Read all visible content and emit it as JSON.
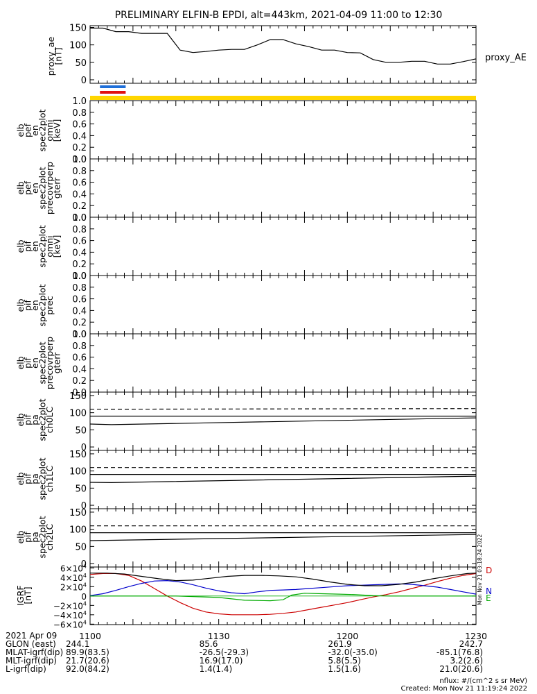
{
  "title": "PRELIMINARY ELFIN-B EPDI, alt=443km, 2021-04-09 11:00 to 12:30",
  "chart_data": [
    {
      "id": "ae",
      "type": "line",
      "ylabel_lines": [
        "proxy_ae",
        "[nT]"
      ],
      "yticks": [
        "150",
        "100",
        "50",
        "0"
      ],
      "ylim": [
        -10,
        155
      ],
      "side_label": "proxy_AE",
      "x_minutes": [
        0,
        3,
        6,
        9,
        12,
        15,
        18,
        21,
        24,
        27,
        30,
        33,
        36,
        39,
        42,
        45,
        48,
        51,
        54,
        57,
        60,
        63,
        66,
        69,
        72,
        75,
        78,
        81,
        84,
        87,
        90
      ],
      "values": [
        148,
        148,
        138,
        138,
        133,
        133,
        133,
        85,
        78,
        81,
        85,
        87,
        87,
        100,
        115,
        115,
        103,
        95,
        85,
        85,
        78,
        77,
        58,
        50,
        50,
        53,
        53,
        45,
        45,
        52,
        60
      ]
    },
    {
      "id": "e-pef-omni",
      "type": "spectrogram",
      "ylabel_lines": [
        "elb",
        "pef",
        "en",
        "spec2plot",
        "omni",
        "[keV]"
      ],
      "yticks": [
        "1.0",
        "0.8",
        "0.6",
        "0.4",
        "0.2",
        "0.0"
      ],
      "ylim": [
        0,
        1
      ]
    },
    {
      "id": "e-pef-precovrperp",
      "type": "spectrogram",
      "ylabel_lines": [
        "elb",
        "pef",
        "en",
        "spec2plot",
        "precovrperp",
        "gterr"
      ],
      "yticks": [
        "1.0",
        "0.8",
        "0.6",
        "0.4",
        "0.2",
        "0.0"
      ],
      "ylim": [
        0,
        1
      ]
    },
    {
      "id": "e-pif-omni",
      "type": "spectrogram",
      "ylabel_lines": [
        "elb",
        "pif",
        "en",
        "spec2plot",
        "omni",
        "[keV]"
      ],
      "yticks": [
        "1.0",
        "0.8",
        "0.6",
        "0.4",
        "0.2",
        "0.0"
      ],
      "ylim": [
        0,
        1
      ]
    },
    {
      "id": "e-pif-prec",
      "type": "spectrogram",
      "ylabel_lines": [
        "elb",
        "pif",
        "en",
        "spec2plot",
        "prec"
      ],
      "yticks": [
        "1.0",
        "0.8",
        "0.6",
        "0.4",
        "0.2",
        "0.0"
      ],
      "ylim": [
        0,
        1
      ]
    },
    {
      "id": "e-pif-precovrperp",
      "type": "spectrogram",
      "ylabel_lines": [
        "elb",
        "pif",
        "en",
        "spec2plot",
        "precovrperp",
        "gterr"
      ],
      "yticks": [
        "1.0",
        "0.8",
        "0.6",
        "0.4",
        "0.2",
        "0.0"
      ],
      "ylim": [
        0,
        1
      ]
    },
    {
      "id": "pa-ch0",
      "type": "line",
      "ylabel_lines": [
        "elb",
        "pif",
        "pa",
        "spec2plot",
        "ch0LC"
      ],
      "yticks": [
        "150",
        "100",
        "50",
        "0"
      ],
      "ylim": [
        -10,
        160
      ],
      "series": [
        {
          "style": "dashed",
          "x_minutes": [
            0,
            90
          ],
          "values": [
            110,
            112
          ]
        },
        {
          "style": "solid",
          "x_minutes": [
            0,
            90
          ],
          "values": [
            90,
            90
          ]
        },
        {
          "style": "solid",
          "x_minutes": [
            0,
            5,
            90
          ],
          "values": [
            67,
            65,
            85
          ]
        }
      ]
    },
    {
      "id": "pa-ch1",
      "type": "line",
      "ylabel_lines": [
        "elb",
        "pif",
        "pa",
        "spec2plot",
        "ch1LC"
      ],
      "yticks": [
        "150",
        "100",
        "50",
        "0"
      ],
      "ylim": [
        -10,
        160
      ],
      "series": [
        {
          "style": "dashed",
          "x_minutes": [
            0,
            90
          ],
          "values": [
            110,
            110
          ]
        },
        {
          "style": "solid",
          "x_minutes": [
            0,
            90
          ],
          "values": [
            90,
            90
          ]
        },
        {
          "style": "solid",
          "x_minutes": [
            0,
            5,
            90
          ],
          "values": [
            67,
            66,
            85
          ]
        }
      ]
    },
    {
      "id": "pa-ch2",
      "type": "line",
      "ylabel_lines": [
        "elb",
        "pif",
        "pa",
        "spec2plot",
        "ch2LC"
      ],
      "yticks": [
        "150",
        "100",
        "50",
        "0"
      ],
      "ylim": [
        -10,
        160
      ],
      "series": [
        {
          "style": "dashed",
          "x_minutes": [
            0,
            90
          ],
          "values": [
            110,
            110
          ]
        },
        {
          "style": "solid",
          "x_minutes": [
            0,
            90
          ],
          "values": [
            90,
            90
          ]
        },
        {
          "style": "solid",
          "x_minutes": [
            0,
            90
          ],
          "values": [
            67,
            85
          ]
        }
      ]
    },
    {
      "id": "igrf",
      "type": "line",
      "ylabel_lines": [
        "IGRF",
        "[nT]"
      ],
      "ylim": [
        -61000,
        62000
      ],
      "yticks": [
        {
          "v": 60000,
          "m": "6×10",
          "e": "4"
        },
        {
          "v": 40000,
          "m": "4×10",
          "e": "4"
        },
        {
          "v": 20000,
          "m": "2×10",
          "e": "4"
        },
        {
          "v": 0,
          "m": "0",
          "e": ""
        },
        {
          "v": -20000,
          "m": "−2×10",
          "e": "4"
        },
        {
          "v": -40000,
          "m": "−4×10",
          "e": "4"
        },
        {
          "v": -60000,
          "m": "−6×10",
          "e": "4"
        }
      ],
      "right_note": "Mon Nov 21 03:18:24 2022",
      "series": [
        {
          "name": "D",
          "color": "#cc0000",
          "x_minutes": [
            0,
            3,
            6,
            9,
            12,
            15,
            18,
            21,
            24,
            27,
            30,
            33,
            36,
            39,
            42,
            45,
            48,
            51,
            54,
            57,
            60,
            63,
            66,
            69,
            72,
            75,
            78,
            81,
            84,
            87,
            90
          ],
          "values": [
            46000,
            48000,
            48000,
            44000,
            32000,
            16000,
            0,
            -14000,
            -26000,
            -34000,
            -38000,
            -40000,
            -40000,
            -40000,
            -39000,
            -37000,
            -34000,
            -29000,
            -24000,
            -19000,
            -14000,
            -8000,
            -2000,
            3000,
            9000,
            16000,
            23000,
            31000,
            38000,
            44000,
            48000
          ]
        },
        {
          "name": "N",
          "color": "#0000cc",
          "x_minutes": [
            0,
            3,
            6,
            9,
            12,
            15,
            18,
            21,
            24,
            27,
            30,
            33,
            36,
            39,
            42,
            45,
            48,
            51,
            54,
            57,
            60,
            63,
            66,
            69,
            72,
            75,
            78,
            81,
            84,
            87,
            90
          ],
          "values": [
            1000,
            5000,
            12000,
            20000,
            27000,
            32000,
            33000,
            30000,
            24000,
            17000,
            11000,
            7000,
            5000,
            9000,
            12000,
            13000,
            14000,
            16000,
            18000,
            20000,
            22000,
            23000,
            24000,
            25000,
            26000,
            25000,
            22000,
            19000,
            14000,
            9000,
            4000
          ]
        },
        {
          "name": "E",
          "color": "#00aa00",
          "x_minutes": [
            0,
            10,
            20,
            30,
            36,
            42,
            45,
            47,
            50,
            54,
            58,
            62,
            66,
            70,
            75,
            80,
            85,
            90
          ],
          "values": [
            0,
            0,
            0,
            -3000,
            -9000,
            -10000,
            -8000,
            2000,
            6000,
            5000,
            4000,
            3000,
            1000,
            0,
            0,
            0,
            0,
            0
          ]
        },
        {
          "name": "",
          "color": "#000000",
          "x_minutes": [
            0,
            4,
            8,
            12,
            16,
            20,
            24,
            28,
            32,
            36,
            40,
            44,
            48,
            52,
            56,
            60,
            64,
            68,
            72,
            76,
            80,
            84,
            88,
            90
          ],
          "values": [
            49000,
            49000,
            47000,
            42000,
            37000,
            33000,
            34000,
            38000,
            42000,
            44000,
            44000,
            43000,
            41000,
            36000,
            30000,
            25000,
            22000,
            22000,
            25000,
            30000,
            37000,
            43000,
            48000,
            49000
          ]
        }
      ]
    }
  ],
  "axis": {
    "x_min": 0,
    "x_max": 90,
    "ticks": [
      {
        "x_minutes": 0,
        "label": "1100"
      },
      {
        "x_minutes": 30,
        "label": "1130"
      },
      {
        "x_minutes": 60,
        "label": "1200"
      },
      {
        "x_minutes": 90,
        "label": "1230"
      }
    ]
  },
  "footer": {
    "date": "2021 Apr 09",
    "rows": [
      {
        "label": "GLON (east)",
        "values": [
          "244.1",
          "85.6",
          "261.9",
          "242.7"
        ]
      },
      {
        "label": "MLAT-igrf(dip)",
        "values": [
          "89.9(83.5)",
          "-26.5(-29.3)",
          "-32.0(-35.0)",
          "-85.1(76.8)"
        ]
      },
      {
        "label": "MLT-igrf(dip)",
        "values": [
          "21.7(20.6)",
          "16.9(17.0)",
          "5.8(5.5)",
          "3.2(2.6)"
        ]
      },
      {
        "label": "L-igrf(dip)",
        "values": [
          "92.0(84.2)",
          "1.4(1.4)",
          "1.5(1.6)",
          "21.0(20.6)"
        ]
      }
    ],
    "units_note": "nflux: #/(cm^2 s sr MeV)",
    "created": "Created: Mon Nov 21 11:19:24 2022"
  },
  "bars": [
    {
      "color": "#1e6fd9",
      "x_start_min": 2.3,
      "x_end_min": 8.3
    },
    {
      "color": "#e01010",
      "x_start_min": 2.3,
      "x_end_min": 8.3
    }
  ],
  "status_bar": {
    "color": "#ffd600"
  }
}
